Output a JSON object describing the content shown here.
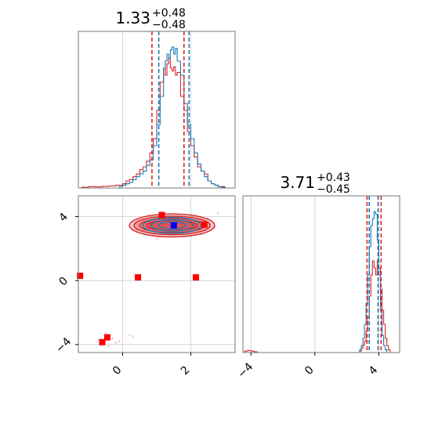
{
  "chart_data": {
    "type": "corner",
    "colors": {
      "series_a": "#1f77b4",
      "series_b": "#d62728",
      "marker_red": "#ff0000",
      "marker_blue": "#0000ff",
      "grid": "#cccccc"
    },
    "params": [
      {
        "title_value": "1.33",
        "title_plus": "+0.48",
        "title_minus": "−0.48"
      },
      {
        "title_value": "3.71",
        "title_plus": "+0.43",
        "title_minus": "−0.45"
      }
    ],
    "axes": {
      "p1_range": [
        -1.3,
        3.3
      ],
      "p2_range": [
        -4.5,
        5.3
      ],
      "p1_ticks": [
        0,
        2
      ],
      "p1_tick_labels": [
        "0",
        "2"
      ],
      "p2_ticks": [
        -4,
        0,
        4
      ],
      "p2_tick_labels": [
        "−4",
        "0",
        "4"
      ]
    },
    "hist_p1_blue": [
      [
        -1.3,
        0
      ],
      [
        -0.2,
        0
      ],
      [
        -0.1,
        0.01
      ],
      [
        0,
        0.02
      ],
      [
        0.1,
        0.03
      ],
      [
        0.2,
        0.04
      ],
      [
        0.3,
        0.06
      ],
      [
        0.4,
        0.08
      ],
      [
        0.5,
        0.1
      ],
      [
        0.6,
        0.12
      ],
      [
        0.7,
        0.16
      ],
      [
        0.8,
        0.2
      ],
      [
        0.9,
        0.3
      ],
      [
        1.0,
        0.45
      ],
      [
        1.1,
        0.65
      ],
      [
        1.2,
        0.85
      ],
      [
        1.25,
        0.9
      ],
      [
        1.3,
        0.95
      ],
      [
        1.35,
        0.92
      ],
      [
        1.4,
        0.98
      ],
      [
        1.45,
        1.0
      ],
      [
        1.5,
        0.95
      ],
      [
        1.55,
        0.99
      ],
      [
        1.6,
        0.9
      ],
      [
        1.7,
        0.8
      ],
      [
        1.8,
        0.6
      ],
      [
        1.9,
        0.45
      ],
      [
        2.0,
        0.35
      ],
      [
        2.1,
        0.25
      ],
      [
        2.2,
        0.17
      ],
      [
        2.3,
        0.12
      ],
      [
        2.4,
        0.08
      ],
      [
        2.5,
        0.05
      ],
      [
        2.6,
        0.03
      ],
      [
        2.7,
        0.02
      ],
      [
        2.8,
        0.01
      ],
      [
        2.9,
        0.005
      ],
      [
        3.0,
        0
      ],
      [
        3.3,
        0
      ]
    ],
    "hist_p1_red": [
      [
        -1.3,
        0
      ],
      [
        -1.2,
        0.005
      ],
      [
        -1.0,
        0.01
      ],
      [
        -0.8,
        0.008
      ],
      [
        -0.6,
        0.012
      ],
      [
        -0.4,
        0.015
      ],
      [
        -0.2,
        0.02
      ],
      [
        0,
        0.03
      ],
      [
        0.1,
        0.05
      ],
      [
        0.2,
        0.06
      ],
      [
        0.3,
        0.08
      ],
      [
        0.4,
        0.1
      ],
      [
        0.5,
        0.13
      ],
      [
        0.6,
        0.15
      ],
      [
        0.7,
        0.19
      ],
      [
        0.8,
        0.25
      ],
      [
        0.9,
        0.35
      ],
      [
        1.0,
        0.55
      ],
      [
        1.1,
        0.75
      ],
      [
        1.2,
        0.85
      ],
      [
        1.25,
        0.8
      ],
      [
        1.3,
        0.88
      ],
      [
        1.35,
        0.92
      ],
      [
        1.4,
        0.85
      ],
      [
        1.45,
        0.83
      ],
      [
        1.5,
        0.86
      ],
      [
        1.55,
        0.8
      ],
      [
        1.6,
        0.82
      ],
      [
        1.7,
        0.65
      ],
      [
        1.8,
        0.55
      ],
      [
        1.9,
        0.4
      ],
      [
        2.0,
        0.3
      ],
      [
        2.1,
        0.22
      ],
      [
        2.2,
        0.15
      ],
      [
        2.3,
        0.12
      ],
      [
        2.4,
        0.1
      ],
      [
        2.5,
        0.05
      ],
      [
        2.6,
        0.03
      ],
      [
        2.7,
        0.02
      ],
      [
        2.8,
        0.01
      ],
      [
        3.0,
        0
      ],
      [
        3.3,
        0
      ]
    ],
    "quantiles_p1_blue": [
      1.06,
      1.95
    ],
    "quantiles_p1_red": [
      0.86,
      1.8
    ],
    "hist_p2_blue": [
      [
        -4.5,
        0
      ],
      [
        2.7,
        0
      ],
      [
        2.8,
        0.02
      ],
      [
        2.9,
        0.05
      ],
      [
        3.0,
        0.1
      ],
      [
        3.1,
        0.2
      ],
      [
        3.2,
        0.35
      ],
      [
        3.3,
        0.55
      ],
      [
        3.4,
        0.75
      ],
      [
        3.5,
        0.9
      ],
      [
        3.6,
        0.95
      ],
      [
        3.7,
        1.0
      ],
      [
        3.8,
        0.98
      ],
      [
        3.9,
        0.8
      ],
      [
        4.0,
        0.55
      ],
      [
        4.1,
        0.3
      ],
      [
        4.2,
        0.12
      ],
      [
        4.3,
        0.05
      ],
      [
        4.4,
        0.02
      ],
      [
        4.5,
        0
      ],
      [
        5.3,
        0
      ]
    ],
    "hist_p2_red": [
      [
        -4.5,
        0
      ],
      [
        -4.4,
        0.01
      ],
      [
        -4.2,
        0.015
      ],
      [
        -4.0,
        0.01
      ],
      [
        -3.8,
        0.005
      ],
      [
        -3.6,
        0
      ],
      [
        2.7,
        0
      ],
      [
        2.8,
        0.01
      ],
      [
        2.9,
        0.03
      ],
      [
        3.0,
        0.05
      ],
      [
        3.1,
        0.08
      ],
      [
        3.2,
        0.15
      ],
      [
        3.3,
        0.25
      ],
      [
        3.4,
        0.4
      ],
      [
        3.5,
        0.55
      ],
      [
        3.6,
        0.65
      ],
      [
        3.7,
        0.6
      ],
      [
        3.8,
        0.55
      ],
      [
        3.9,
        0.65
      ],
      [
        4.0,
        0.6
      ],
      [
        4.1,
        0.45
      ],
      [
        4.2,
        0.3
      ],
      [
        4.3,
        0.2
      ],
      [
        4.4,
        0.1
      ],
      [
        4.5,
        0.05
      ],
      [
        4.6,
        0.02
      ],
      [
        4.7,
        0
      ],
      [
        5.3,
        0
      ]
    ],
    "quantiles_p2_blue": [
      3.4,
      3.95
    ],
    "quantiles_p2_red": [
      3.26,
      4.14
    ],
    "contour_center": [
      1.45,
      3.45
    ],
    "contours_red": [
      [
        1.25,
        0.72
      ],
      [
        1.12,
        0.58
      ],
      [
        0.95,
        0.45
      ],
      [
        0.75,
        0.33
      ]
    ],
    "contours_blue": [
      [
        0.85,
        0.5
      ],
      [
        0.62,
        0.36
      ],
      [
        0.4,
        0.22
      ]
    ],
    "markers_red": [
      [
        -1.25,
        0.3
      ],
      [
        0.45,
        0.2
      ],
      [
        2.15,
        0.2
      ],
      [
        1.15,
        4.1
      ],
      [
        2.4,
        3.5
      ],
      [
        -0.45,
        -3.55
      ],
      [
        -0.6,
        -3.85
      ]
    ],
    "markers_blue": [
      [
        1.5,
        3.45
      ]
    ],
    "scatter_points": [
      [
        -0.3,
        -3.6
      ],
      [
        -0.5,
        -3.3
      ],
      [
        -0.7,
        -3.7
      ],
      [
        -0.2,
        -3.9
      ],
      [
        -0.4,
        -4.1
      ],
      [
        0.2,
        -3.4
      ],
      [
        0.8,
        3.0
      ],
      [
        2.5,
        3.9
      ],
      [
        2.7,
        3.3
      ],
      [
        0.6,
        3.8
      ],
      [
        2.0,
        2.8
      ],
      [
        1.0,
        2.6
      ],
      [
        2.8,
        4.2
      ],
      [
        0.4,
        3.2
      ],
      [
        2.3,
        2.9
      ],
      [
        -0.1,
        -3.8
      ],
      [
        0.3,
        -3.5
      ]
    ]
  }
}
